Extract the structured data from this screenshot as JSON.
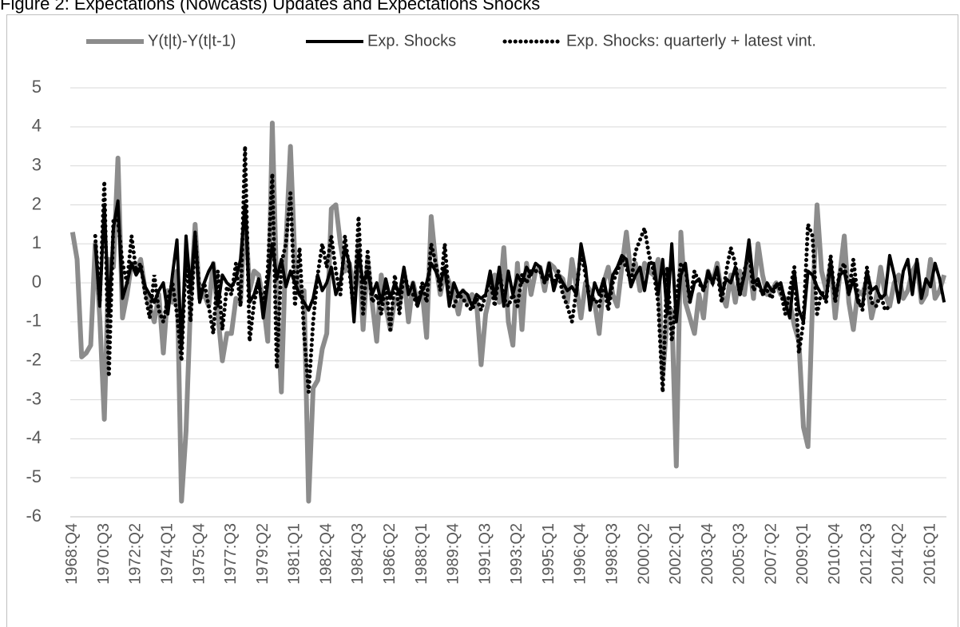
{
  "chart_data": {
    "type": "line",
    "title": "Figure 2: Expectations (Nowcasts) Updates and Expectations Shocks",
    "categories": [
      "1968:Q4",
      null,
      null,
      null,
      null,
      null,
      null,
      "1970:Q3",
      null,
      null,
      null,
      null,
      null,
      null,
      "1972:Q2",
      null,
      null,
      null,
      null,
      null,
      null,
      "1974:Q1",
      null,
      null,
      null,
      null,
      null,
      null,
      "1975:Q4",
      null,
      null,
      null,
      null,
      null,
      null,
      "1977:Q3",
      null,
      null,
      null,
      null,
      null,
      null,
      "1979:Q2",
      null,
      null,
      null,
      null,
      null,
      null,
      "1981:Q1",
      null,
      null,
      null,
      null,
      null,
      null,
      "1982:Q4",
      null,
      null,
      null,
      null,
      null,
      null,
      "1984:Q3",
      null,
      null,
      null,
      null,
      null,
      null,
      "1986:Q2",
      null,
      null,
      null,
      null,
      null,
      null,
      "1988:Q1",
      null,
      null,
      null,
      null,
      null,
      null,
      "1989:Q4",
      null,
      null,
      null,
      null,
      null,
      null,
      "1991:Q3",
      null,
      null,
      null,
      null,
      null,
      null,
      "1993:Q2",
      null,
      null,
      null,
      null,
      null,
      null,
      "1995:Q1",
      null,
      null,
      null,
      null,
      null,
      null,
      "1996:Q4",
      null,
      null,
      null,
      null,
      null,
      null,
      "1998:Q3",
      null,
      null,
      null,
      null,
      null,
      null,
      "2000:Q2",
      null,
      null,
      null,
      null,
      null,
      null,
      "2002:Q1",
      null,
      null,
      null,
      null,
      null,
      null,
      "2003:Q4",
      null,
      null,
      null,
      null,
      null,
      null,
      "2005:Q3",
      null,
      null,
      null,
      null,
      null,
      null,
      "2007:Q2",
      null,
      null,
      null,
      null,
      null,
      null,
      "2009:Q1",
      null,
      null,
      null,
      null,
      null,
      null,
      "2010:Q4",
      null,
      null,
      null,
      null,
      null,
      null,
      "2012:Q3",
      null,
      null,
      null,
      null,
      null,
      null,
      "2014:Q2",
      null,
      null,
      null,
      null,
      null,
      null,
      "2016:Q1",
      null,
      null,
      null
    ],
    "series": [
      {
        "name": "Y(t|t)-Y(t|t-1)",
        "color": "#8c8c8c",
        "style": "solid",
        "values": [
          1.3,
          0.6,
          -1.9,
          -1.8,
          -1.6,
          1.0,
          -0.9,
          -3.5,
          0.6,
          0.4,
          3.2,
          -0.9,
          -0.3,
          0.5,
          0.3,
          0.6,
          -0.2,
          -0.6,
          -1.0,
          -0.3,
          -1.8,
          -0.2,
          -0.5,
          0.3,
          -5.6,
          -3.8,
          -0.5,
          1.5,
          -0.4,
          -0.3,
          -0.6,
          0.5,
          -0.8,
          -2.0,
          -1.3,
          -1.3,
          -0.4,
          -0.5,
          1.9,
          -0.2,
          0.3,
          0.2,
          -0.5,
          -1.5,
          4.1,
          -0.3,
          -2.8,
          1.0,
          3.5,
          0.5,
          -0.3,
          -0.2,
          -5.6,
          -2.7,
          -2.5,
          -1.7,
          -1.3,
          1.9,
          2.0,
          1.0,
          0.3,
          0.5,
          -0.3,
          1.0,
          -1.2,
          0.6,
          -0.5,
          -1.5,
          0.2,
          -0.6,
          -1.2,
          -0.4,
          -0.6,
          0.2,
          -1.0,
          0.0,
          -0.5,
          -0.2,
          -1.4,
          1.7,
          0.5,
          -0.3,
          0.3,
          0.0,
          -0.3,
          -0.8,
          -0.2,
          -0.5,
          -0.3,
          -0.5,
          -2.1,
          -0.8,
          -0.3,
          0.2,
          -0.5,
          0.9,
          -1.0,
          -1.6,
          0.5,
          -1.2,
          0.5,
          -0.3,
          0.3,
          0.4,
          -0.2,
          0.5,
          0.4,
          0.2,
          0.1,
          -0.5,
          0.6,
          -0.1,
          -0.9,
          0.0,
          -0.2,
          -0.5,
          -1.3,
          0.0,
          0.4,
          -0.3,
          -0.6,
          0.4,
          1.3,
          0.2,
          0.5,
          -0.2,
          0.5,
          0.3,
          0.2,
          0.6,
          -2.4,
          -0.9,
          -0.7,
          -4.7,
          1.3,
          -0.5,
          -0.9,
          -1.3,
          -0.3,
          -0.9,
          0.3,
          0.0,
          0.5,
          -0.3,
          -0.6,
          0.2,
          -0.5,
          0.3,
          -0.3,
          0.6,
          -0.4,
          1.0,
          0.2,
          -0.3,
          -0.2,
          0.0,
          -0.3,
          -0.4,
          -0.5,
          -1.1,
          -1.5,
          -3.7,
          -4.2,
          -0.5,
          2.0,
          0.3,
          -0.2,
          0.5,
          -0.9,
          0.2,
          1.2,
          -0.5,
          -1.2,
          -0.2,
          -0.3,
          0.1,
          -0.9,
          -0.4,
          0.4,
          -0.3,
          -0.6,
          0.0,
          0.2,
          -0.4,
          -0.2,
          0.3,
          0.5,
          -0.5,
          -0.3,
          0.6,
          -0.4,
          -0.2,
          0.2
        ]
      },
      {
        "name": "Exp. Shocks",
        "color": "#000000",
        "style": "solid",
        "values": [
          null,
          null,
          null,
          null,
          null,
          1.0,
          -0.6,
          2.0,
          -0.8,
          1.4,
          2.1,
          -0.4,
          0.0,
          0.5,
          0.2,
          0.4,
          -0.1,
          -0.3,
          -0.5,
          -0.2,
          0.0,
          -0.8,
          0.2,
          1.1,
          -1.7,
          1.2,
          -0.2,
          1.3,
          -0.5,
          0.0,
          0.3,
          0.5,
          -0.6,
          0.2,
          0.0,
          -0.1,
          0.1,
          0.6,
          2.0,
          -0.5,
          -0.3,
          0.1,
          -0.9,
          0.0,
          1.0,
          0.1,
          0.6,
          -0.1,
          0.3,
          0.0,
          -0.3,
          -0.5,
          -0.7,
          -0.4,
          0.2,
          -0.2,
          0.0,
          0.4,
          -0.3,
          0.0,
          0.9,
          0.5,
          -1.0,
          0.8,
          0.0,
          0.3,
          -0.3,
          0.0,
          -0.5,
          0.1,
          -0.4,
          0.0,
          -0.3,
          0.4,
          -0.3,
          0.0,
          -0.6,
          -0.2,
          0.0,
          0.5,
          0.3,
          0.0,
          0.4,
          -0.6,
          0.0,
          -0.3,
          -0.2,
          -0.3,
          -0.6,
          -0.3,
          -0.4,
          -0.3,
          0.3,
          -0.4,
          0.4,
          -0.6,
          0.3,
          -0.3,
          0.2,
          0.0,
          0.4,
          0.2,
          0.5,
          0.4,
          0.0,
          0.5,
          -0.2,
          0.2,
          0.0,
          -0.2,
          -0.1,
          -0.3,
          1.0,
          0.4,
          -0.7,
          0.0,
          -0.3,
          0.1,
          -0.5,
          0.2,
          0.4,
          0.7,
          0.6,
          -0.1,
          0.2,
          0.4,
          -0.2,
          0.5,
          0.5,
          -0.3,
          0.6,
          -0.8,
          1.0,
          -1.0,
          0.2,
          0.5,
          -0.5,
          0.0,
          0.1,
          -0.2,
          0.3,
          0.0,
          0.4,
          -0.3,
          0.1,
          0.0,
          0.4,
          -0.3,
          0.2,
          1.1,
          0.0,
          0.1,
          -0.3,
          0.0,
          -0.2,
          -0.1,
          0.0,
          -0.5,
          -0.9,
          0.3,
          -0.7,
          -1.0,
          0.3,
          0.2,
          -0.1,
          -0.3,
          -0.4,
          0.5,
          -0.4,
          0.2,
          0.3,
          -0.3,
          0.1,
          -0.5,
          -0.6,
          0.3,
          -0.2,
          -0.1,
          -0.4,
          -0.3,
          0.7,
          0.2,
          -0.5,
          0.3,
          0.6,
          -0.3,
          0.6,
          -0.4,
          0.1,
          -0.1,
          0.5,
          0.1,
          -0.5
        ]
      },
      {
        "name": "Exp. Shocks: quarterly + latest vint.",
        "color": "#000000",
        "style": "dotted",
        "values": [
          null,
          null,
          null,
          null,
          null,
          1.2,
          -0.5,
          2.6,
          -2.4,
          1.6,
          1.6,
          0.5,
          0.0,
          1.2,
          0.3,
          0.5,
          -0.3,
          -0.9,
          0.2,
          -0.7,
          -1.0,
          -0.4,
          0.0,
          -0.8,
          -2.0,
          0.8,
          -1.0,
          1.2,
          -0.3,
          0.0,
          -0.6,
          -1.3,
          0.3,
          -1.2,
          -0.1,
          -0.3,
          0.5,
          -0.6,
          3.5,
          -1.5,
          -0.5,
          0.0,
          -0.6,
          0.3,
          2.8,
          -2.2,
          0.5,
          1.0,
          2.3,
          -0.6,
          0.9,
          -1.3,
          -2.8,
          -1.0,
          0.2,
          1.0,
          0.4,
          1.2,
          0.3,
          -0.3,
          1.2,
          0.3,
          -0.8,
          1.7,
          -0.8,
          0.8,
          -0.5,
          -0.3,
          -0.8,
          0.0,
          -1.2,
          0.2,
          -0.8,
          0.3,
          -0.2,
          -0.3,
          -0.6,
          0.0,
          -0.5,
          1.0,
          0.5,
          -0.2,
          1.0,
          -0.5,
          -0.6,
          -0.3,
          -0.4,
          -0.6,
          -0.7,
          -0.4,
          -0.7,
          -0.3,
          0.1,
          -0.6,
          0.3,
          -0.4,
          -0.6,
          -0.3,
          -0.6,
          0.2,
          0.0,
          0.3,
          0.3,
          0.3,
          0.0,
          0.2,
          0.0,
          0.3,
          -0.3,
          -0.6,
          -1.0,
          -0.2,
          0.8,
          0.2,
          -0.5,
          -0.4,
          -0.6,
          0.0,
          -0.7,
          0.0,
          0.3,
          0.6,
          0.4,
          0.0,
          0.8,
          1.1,
          1.4,
          0.7,
          0.3,
          -0.5,
          -2.8,
          0.4,
          -1.5,
          -0.4,
          0.5,
          0.4,
          -0.5,
          0.3,
          0.0,
          -0.2,
          0.2,
          0.0,
          0.3,
          -0.5,
          0.3,
          0.9,
          0.5,
          -0.3,
          0.3,
          0.8,
          -0.2,
          0.0,
          -0.3,
          -0.2,
          -0.4,
          0.0,
          -0.2,
          -0.8,
          -0.2,
          0.4,
          -1.8,
          -1.0,
          1.5,
          1.2,
          -0.8,
          -0.2,
          -0.5,
          0.7,
          -0.5,
          0.3,
          0.5,
          -0.3,
          0.6,
          -0.4,
          -0.7,
          0.4,
          -0.5,
          -0.6,
          -0.3,
          -0.7,
          -0.6,
          null,
          null,
          null,
          null,
          null,
          null,
          null,
          null,
          null,
          null,
          null,
          null
        ]
      }
    ],
    "ylim": [
      -6,
      5
    ],
    "yticks": [
      -6,
      -5,
      -4,
      -3,
      -2,
      -1,
      0,
      1,
      2,
      3,
      4,
      5
    ],
    "grid": true,
    "legend": "top"
  }
}
